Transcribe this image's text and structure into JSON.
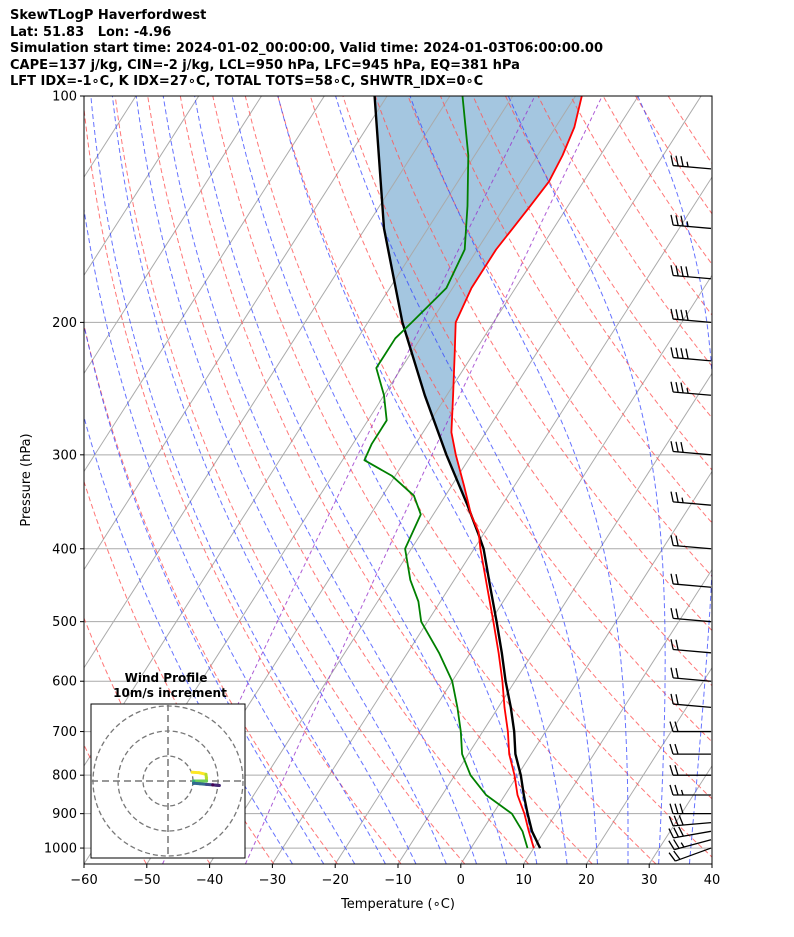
{
  "header": {
    "line1": "SkewTLogP Haverfordwest",
    "line2": "Lat: 51.83   Lon: -4.96",
    "line3": "Simulation start time: 2024-01-02_00:00:00, Valid time: 2024-01-03T06:00:00.00",
    "line4": "CAPE=137 j/kg, CIN=-2 j/kg, LCL=950 hPa, LFC=945 hPa, EQ=381 hPa",
    "line5": "LFT IDX=-1∘C, K IDX=27∘C, TOTAL TOTS=58∘C, SHWTR_IDX=0∘C"
  },
  "chart_data": {
    "type": "skew-t",
    "title": "SkewTLogP Haverfordwest",
    "xlabel": "Temperature (∘C)",
    "ylabel": "Pressure (hPa)",
    "xlim": [
      -60,
      40
    ],
    "ylim": [
      1050,
      100
    ],
    "x_ticks": [
      "−60",
      "−50",
      "−40",
      "−30",
      "−20",
      "−10",
      "0",
      "10",
      "20",
      "30",
      "40"
    ],
    "y_ticks": [
      "100",
      "200",
      "300",
      "400",
      "500",
      "600",
      "700",
      "800",
      "900",
      "1000"
    ],
    "temperature_profile": {
      "color": "#ff0000",
      "points": [
        [
          1000,
          10
        ],
        [
          950,
          7.5
        ],
        [
          900,
          5
        ],
        [
          850,
          2
        ],
        [
          800,
          -0.5
        ],
        [
          750,
          -3.5
        ],
        [
          700,
          -6
        ],
        [
          650,
          -9
        ],
        [
          600,
          -12
        ],
        [
          550,
          -15.5
        ],
        [
          500,
          -19.5
        ],
        [
          450,
          -24
        ],
        [
          400,
          -29
        ],
        [
          380,
          -31
        ],
        [
          360,
          -34
        ],
        [
          330,
          -38
        ],
        [
          300,
          -42.5
        ],
        [
          280,
          -45.5
        ],
        [
          250,
          -49
        ],
        [
          220,
          -53
        ],
        [
          200,
          -56
        ],
        [
          180,
          -57
        ],
        [
          160,
          -57
        ],
        [
          150,
          -56.5
        ],
        [
          140,
          -56
        ],
        [
          130,
          -55.5
        ],
        [
          120,
          -56
        ],
        [
          110,
          -57
        ],
        [
          100,
          -59
        ]
      ]
    },
    "dewpoint_profile": {
      "color": "#008000",
      "points": [
        [
          1000,
          9
        ],
        [
          950,
          6.5
        ],
        [
          900,
          3
        ],
        [
          850,
          -3
        ],
        [
          800,
          -7.5
        ],
        [
          750,
          -11
        ],
        [
          700,
          -13.5
        ],
        [
          650,
          -16.5
        ],
        [
          600,
          -20
        ],
        [
          550,
          -25
        ],
        [
          500,
          -31
        ],
        [
          470,
          -33.5
        ],
        [
          440,
          -37
        ],
        [
          400,
          -41
        ],
        [
          360,
          -42
        ],
        [
          340,
          -45
        ],
        [
          320,
          -50.5
        ],
        [
          305,
          -56.5
        ],
        [
          290,
          -57
        ],
        [
          270,
          -57
        ],
        [
          250,
          -60
        ],
        [
          230,
          -64
        ],
        [
          210,
          -64
        ],
        [
          200,
          -63
        ],
        [
          180,
          -61
        ],
        [
          160,
          -62
        ],
        [
          140,
          -66
        ],
        [
          120,
          -71
        ],
        [
          100,
          -78
        ]
      ]
    },
    "parcel_profile": {
      "color": "#000000",
      "points": [
        [
          1000,
          11
        ],
        [
          950,
          8
        ],
        [
          900,
          5.5
        ],
        [
          850,
          3
        ],
        [
          800,
          0.5
        ],
        [
          750,
          -2.5
        ],
        [
          700,
          -5
        ],
        [
          650,
          -8
        ],
        [
          600,
          -11.5
        ],
        [
          550,
          -15
        ],
        [
          500,
          -19
        ],
        [
          450,
          -23.5
        ],
        [
          400,
          -28.5
        ],
        [
          381,
          -31
        ],
        [
          350,
          -35.5
        ],
        [
          300,
          -44
        ],
        [
          250,
          -53.5
        ],
        [
          200,
          -64.5
        ],
        [
          150,
          -77
        ],
        [
          100,
          -92
        ]
      ]
    },
    "cape_shading": {
      "color": "#7eaed3",
      "from_pressure": 381,
      "to_pressure": 100
    },
    "isotherm_spacing_c": 10,
    "dry_adiabats_theta_k": [
      220,
      230,
      240,
      250,
      260,
      270,
      280,
      290,
      300,
      310,
      320,
      330,
      340,
      350,
      360,
      370,
      380,
      390,
      400,
      410,
      420,
      430,
      440
    ],
    "moist_adiabats_theta_c": [
      -30,
      -25,
      -20,
      -15,
      -10,
      -5,
      0,
      5,
      10,
      15,
      20,
      25,
      30,
      35
    ],
    "mixing_ratio_lines_gkg": [
      0.1,
      0.4,
      1,
      2,
      4,
      7,
      10,
      16,
      24,
      32
    ],
    "wind_barbs": {
      "pressures": [
        1000,
        975,
        950,
        925,
        900,
        850,
        800,
        750,
        700,
        650,
        600,
        550,
        500,
        450,
        400,
        350,
        300,
        250,
        225,
        200,
        175,
        150,
        125,
        100
      ],
      "speed_kt": [
        20,
        25,
        30,
        30,
        30,
        25,
        20,
        20,
        20,
        20,
        20,
        20,
        20,
        20,
        20,
        25,
        30,
        35,
        40,
        40,
        40,
        35,
        35,
        35
      ],
      "direction_deg": [
        250,
        255,
        260,
        265,
        270,
        270,
        270,
        270,
        270,
        275,
        275,
        275,
        275,
        275,
        275,
        275,
        275,
        275,
        275,
        275,
        275,
        275,
        275,
        275
      ]
    },
    "inset": {
      "title": "Wind Profile",
      "subtitle": "10m/s increment",
      "rings_ms": [
        10,
        20,
        30
      ]
    }
  }
}
